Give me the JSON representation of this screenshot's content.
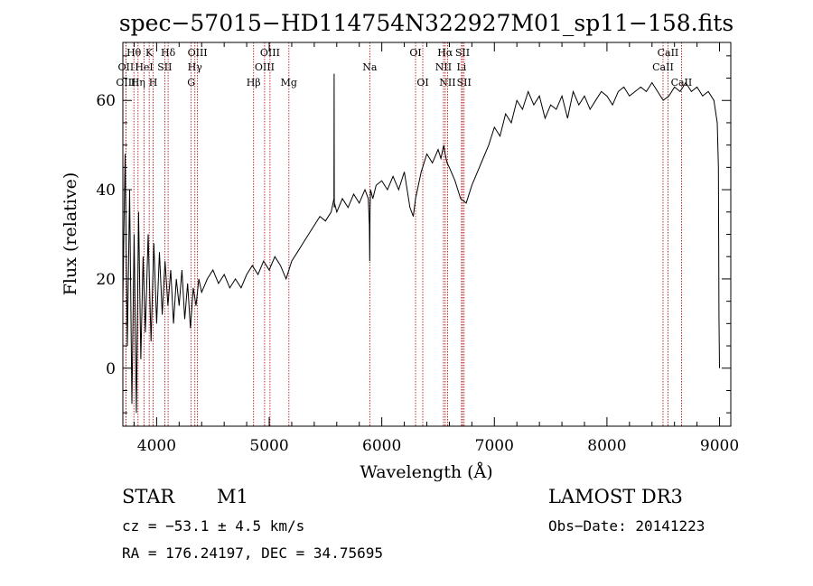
{
  "chart_data": {
    "type": "line",
    "title": "spec−57015−HD114754N322927M01_sp11−158.fits",
    "xlabel": "Wavelength (Å)",
    "ylabel": "Flux (relative)",
    "xlim": [
      3700,
      9100
    ],
    "ylim": [
      -13,
      73
    ],
    "xticks": [
      4000,
      5000,
      6000,
      7000,
      8000,
      9000
    ],
    "yticks": [
      0,
      20,
      40,
      60
    ],
    "line_color": "#000000",
    "marker_color": "#aa0000",
    "series": [
      {
        "x": [
          3700,
          3720,
          3740,
          3760,
          3780,
          3800,
          3820,
          3840,
          3860,
          3880,
          3900,
          3925,
          3950,
          3975,
          4000,
          4025,
          4050,
          4075,
          4100,
          4125,
          4150,
          4175,
          4200,
          4225,
          4250,
          4275,
          4300,
          4325,
          4350,
          4375,
          4400,
          4450,
          4500,
          4550,
          4600,
          4650,
          4700,
          4750,
          4800,
          4850,
          4900,
          4950,
          5000,
          5050,
          5100,
          5150,
          5200,
          5250,
          5300,
          5350,
          5400,
          5450,
          5500,
          5550,
          5575,
          5577,
          5578,
          5580,
          5600,
          5650,
          5700,
          5750,
          5800,
          5850,
          5880,
          5890,
          5893,
          5896,
          5900,
          5920,
          5950,
          6000,
          6050,
          6100,
          6150,
          6200,
          6250,
          6280,
          6300,
          6350,
          6400,
          6450,
          6500,
          6525,
          6550,
          6563,
          6580,
          6600,
          6650,
          6700,
          6750,
          6800,
          6850,
          6900,
          6950,
          7000,
          7050,
          7100,
          7150,
          7200,
          7250,
          7300,
          7350,
          7400,
          7450,
          7500,
          7550,
          7600,
          7650,
          7700,
          7750,
          7800,
          7850,
          7900,
          7950,
          8000,
          8050,
          8100,
          8150,
          8200,
          8250,
          8300,
          8350,
          8400,
          8450,
          8500,
          8550,
          8600,
          8650,
          8700,
          8750,
          8800,
          8850,
          8900,
          8950,
          8980,
          8990,
          8995,
          9000
        ],
        "y": [
          15,
          48,
          5,
          40,
          -8,
          30,
          -10,
          35,
          2,
          25,
          8,
          30,
          6,
          28,
          10,
          26,
          12,
          24,
          14,
          22,
          10,
          20,
          14,
          22,
          11,
          19,
          9,
          18,
          14,
          20,
          17,
          20,
          22,
          19,
          21,
          18,
          20,
          18,
          21,
          23,
          21,
          24,
          22,
          25,
          23,
          20,
          24,
          26,
          28,
          30,
          32,
          34,
          33,
          35,
          38,
          66,
          36,
          37,
          35,
          38,
          36,
          39,
          37,
          40,
          38,
          32,
          24,
          36,
          40,
          38,
          41,
          42,
          40,
          43,
          40,
          44,
          36,
          34,
          38,
          44,
          48,
          46,
          49,
          47,
          50,
          48,
          46,
          45,
          42,
          38,
          37,
          41,
          44,
          47,
          50,
          54,
          52,
          57,
          55,
          60,
          58,
          62,
          59,
          61,
          56,
          59,
          58,
          61,
          56,
          62,
          59,
          61,
          58,
          60,
          62,
          61,
          59,
          62,
          63,
          61,
          62,
          63,
          62,
          64,
          62,
          60,
          61,
          63,
          62,
          64,
          62,
          63,
          61,
          62,
          60,
          55,
          45,
          12,
          0
        ]
      }
    ],
    "spectral_lines": [
      {
        "label": "Hθ",
        "wavelength": 3798,
        "row": 1
      },
      {
        "label": "OII",
        "wavelength": 3727,
        "row": 2
      },
      {
        "label": "OIII",
        "wavelength": 3727,
        "row": 3
      },
      {
        "label": "Hη",
        "wavelength": 3835,
        "row": 3
      },
      {
        "label": "HeI",
        "wavelength": 3889,
        "row": 2
      },
      {
        "label": "K",
        "wavelength": 3934,
        "row": 1
      },
      {
        "label": "H",
        "wavelength": 3969,
        "row": 3
      },
      {
        "label": "SII",
        "wavelength": 4072,
        "row": 2
      },
      {
        "label": "Hδ",
        "wavelength": 4102,
        "row": 1
      },
      {
        "label": "OIII",
        "wavelength": 4363,
        "row": 1
      },
      {
        "label": "Hγ",
        "wavelength": 4340,
        "row": 2
      },
      {
        "label": "G",
        "wavelength": 4307,
        "row": 3
      },
      {
        "label": "Hβ",
        "wavelength": 4861,
        "row": 3
      },
      {
        "label": "OIII",
        "wavelength": 4959,
        "row": 2
      },
      {
        "label": "OIII",
        "wavelength": 5007,
        "row": 1
      },
      {
        "label": "Mg",
        "wavelength": 5175,
        "row": 3
      },
      {
        "label": "Na",
        "wavelength": 5893,
        "row": 2
      },
      {
        "label": "OI",
        "wavelength": 6300,
        "row": 1
      },
      {
        "label": "OI",
        "wavelength": 6364,
        "row": 3
      },
      {
        "label": "Hα",
        "wavelength": 6563,
        "row": 1
      },
      {
        "label": "NII",
        "wavelength": 6548,
        "row": 2
      },
      {
        "label": "NII",
        "wavelength": 6584,
        "row": 3
      },
      {
        "label": "SII",
        "wavelength": 6717,
        "row": 1
      },
      {
        "label": "Li",
        "wavelength": 6708,
        "row": 2
      },
      {
        "label": "SII",
        "wavelength": 6731,
        "row": 3
      },
      {
        "label": "CaII",
        "wavelength": 8542,
        "row": 1
      },
      {
        "label": "CaII",
        "wavelength": 8498,
        "row": 2
      },
      {
        "label": "CaII",
        "wavelength": 8662,
        "row": 3
      }
    ]
  },
  "info": {
    "object_class": "STAR",
    "subclass": "M1",
    "survey": "LAMOST DR3",
    "cz": "cz = −53.1 ± 4.5 km/s",
    "obs_date": "Obs−Date: 20141223",
    "coords": "RA = 176.24197, DEC =  34.75695"
  }
}
